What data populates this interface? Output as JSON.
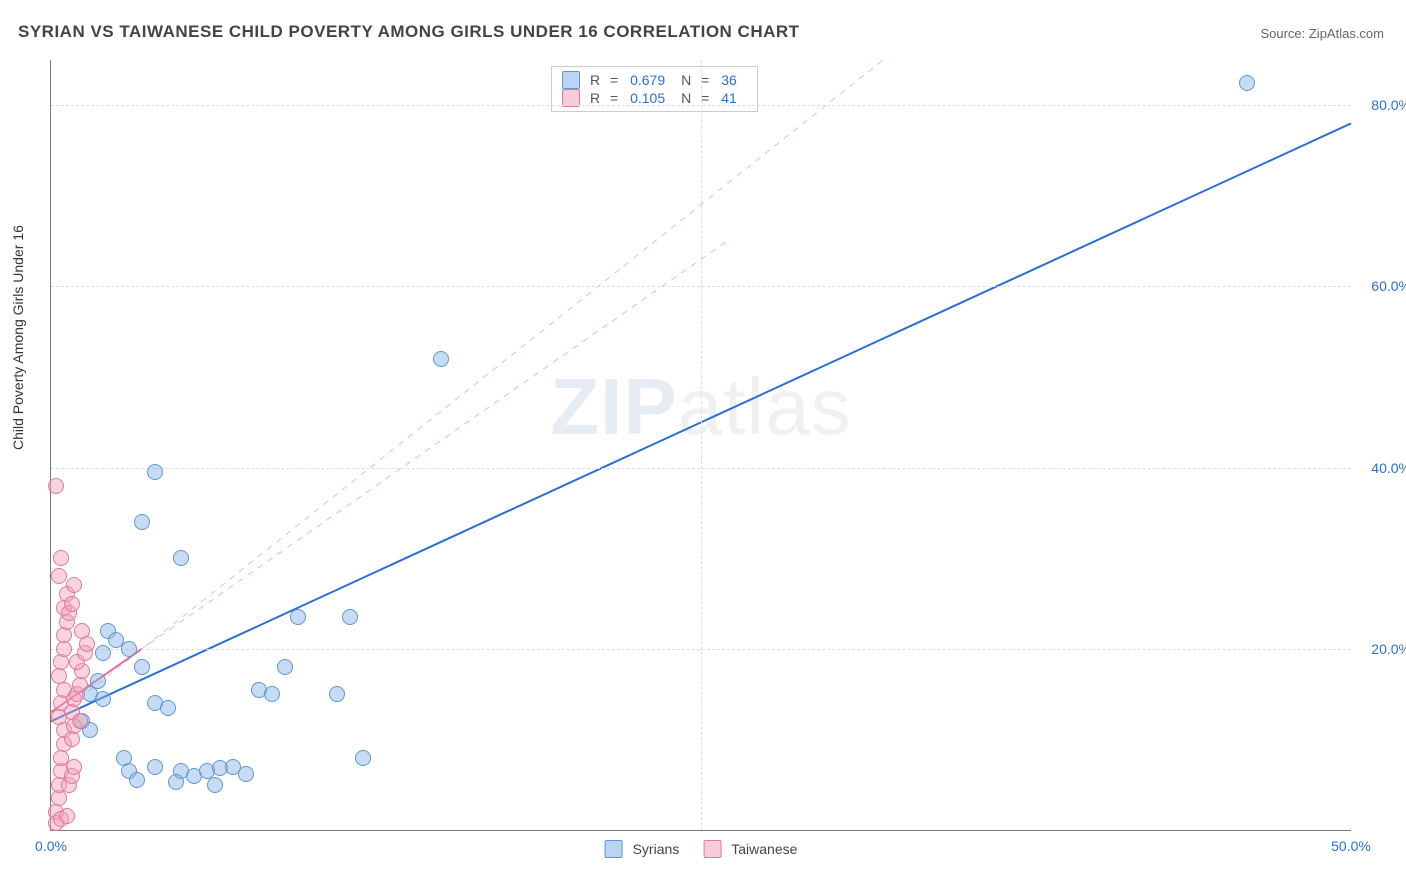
{
  "title": "SYRIAN VS TAIWANESE CHILD POVERTY AMONG GIRLS UNDER 16 CORRELATION CHART",
  "source_prefix": "Source: ",
  "source_name": "ZipAtlas.com",
  "ylabel": "Child Poverty Among Girls Under 16",
  "watermark_zip": "ZIP",
  "watermark_atlas": "atlas",
  "chart": {
    "type": "scatter-correlation",
    "background_color": "#ffffff",
    "grid_color": "#dddddd",
    "axis_color": "#777777",
    "value_text_color": "#2b6fd6",
    "label_text_color": "#333333",
    "xlim": [
      0,
      50
    ],
    "ylim": [
      0,
      85
    ],
    "xticks": [
      {
        "v": 0,
        "label": "0.0%"
      },
      {
        "v": 50,
        "label": "50.0%"
      }
    ],
    "yticks": [
      {
        "v": 20,
        "label": "20.0%"
      },
      {
        "v": 40,
        "label": "40.0%"
      },
      {
        "v": 60,
        "label": "60.0%"
      },
      {
        "v": 80,
        "label": "80.0%"
      }
    ],
    "grid_y": [
      20,
      40,
      60,
      80
    ],
    "grid_x": [
      25
    ],
    "marker_size": 14,
    "series": [
      {
        "name": "Syrians",
        "label": "Syrians",
        "color_fill": "rgba(130,177,230,0.45)",
        "color_stroke": "#5e97d1",
        "R_label": "R",
        "R": "0.679",
        "N_label": "N",
        "N": "36",
        "trend": {
          "style": "solid",
          "color": "#2b6fd6",
          "width": 2,
          "x1": 0,
          "y1": 12,
          "x2": 50,
          "y2": 78
        },
        "dashed_ref": {
          "style": "dashed",
          "color": "rgba(130,177,230,0.6)",
          "width": 1,
          "x1": 0,
          "y1": 12,
          "x2": 32,
          "y2": 85
        },
        "points": [
          [
            2.0,
            19.5
          ],
          [
            2.2,
            22.0
          ],
          [
            2.5,
            21.0
          ],
          [
            3.0,
            20.0
          ],
          [
            3.5,
            18.0
          ],
          [
            4.0,
            14.0
          ],
          [
            4.5,
            13.5
          ],
          [
            3.0,
            6.5
          ],
          [
            4.0,
            7.0
          ],
          [
            5.0,
            6.5
          ],
          [
            5.5,
            6.0
          ],
          [
            6.0,
            6.5
          ],
          [
            6.5,
            6.8
          ],
          [
            7.0,
            7.0
          ],
          [
            7.5,
            6.2
          ],
          [
            8.0,
            15.5
          ],
          [
            8.5,
            15.0
          ],
          [
            11.0,
            15.0
          ],
          [
            12.0,
            8.0
          ],
          [
            3.5,
            34.0
          ],
          [
            5.0,
            30.0
          ],
          [
            4.0,
            39.5
          ],
          [
            9.5,
            23.5
          ],
          [
            11.5,
            23.5
          ],
          [
            9.0,
            18.0
          ],
          [
            15.0,
            52.0
          ],
          [
            46.0,
            82.5
          ],
          [
            1.5,
            15.0
          ],
          [
            1.8,
            16.5
          ],
          [
            2.0,
            14.5
          ],
          [
            1.2,
            12.0
          ],
          [
            1.5,
            11.0
          ],
          [
            2.8,
            8.0
          ],
          [
            3.3,
            5.5
          ],
          [
            4.8,
            5.3
          ],
          [
            6.3,
            5.0
          ]
        ]
      },
      {
        "name": "Taiwanese",
        "label": "Taiwanese",
        "color_fill": "rgba(242,160,185,0.45)",
        "color_stroke": "#e07a9b",
        "R_label": "R",
        "R": "0.105",
        "N_label": "N",
        "N": "41",
        "trend": {
          "style": "solid",
          "color": "#e86b95",
          "width": 2,
          "x1": 0,
          "y1": 13,
          "x2": 3.5,
          "y2": 20
        },
        "dashed_ref": {
          "style": "dashed",
          "color": "rgba(232,107,149,0.5)",
          "width": 1,
          "x1": 0,
          "y1": 13,
          "x2": 26,
          "y2": 65
        },
        "points": [
          [
            0.2,
            2.0
          ],
          [
            0.3,
            3.5
          ],
          [
            0.3,
            5.0
          ],
          [
            0.4,
            6.5
          ],
          [
            0.4,
            8.0
          ],
          [
            0.5,
            9.5
          ],
          [
            0.5,
            11.0
          ],
          [
            0.3,
            12.5
          ],
          [
            0.4,
            14.0
          ],
          [
            0.5,
            15.5
          ],
          [
            0.3,
            17.0
          ],
          [
            0.4,
            18.5
          ],
          [
            0.5,
            20.0
          ],
          [
            0.5,
            21.5
          ],
          [
            0.6,
            23.0
          ],
          [
            0.5,
            24.5
          ],
          [
            0.6,
            26.0
          ],
          [
            0.3,
            28.0
          ],
          [
            0.4,
            30.0
          ],
          [
            0.2,
            38.0
          ],
          [
            0.8,
            13.0
          ],
          [
            0.9,
            14.5
          ],
          [
            1.0,
            15.0
          ],
          [
            1.1,
            16.0
          ],
          [
            1.2,
            17.5
          ],
          [
            1.0,
            18.5
          ],
          [
            0.8,
            10.0
          ],
          [
            0.9,
            11.5
          ],
          [
            1.1,
            12.0
          ],
          [
            0.7,
            5.0
          ],
          [
            0.8,
            6.0
          ],
          [
            0.9,
            7.0
          ],
          [
            0.2,
            0.8
          ],
          [
            0.4,
            1.2
          ],
          [
            0.6,
            1.5
          ],
          [
            1.3,
            19.5
          ],
          [
            1.4,
            20.5
          ],
          [
            1.2,
            22.0
          ],
          [
            0.7,
            24.0
          ],
          [
            0.8,
            25.0
          ],
          [
            0.9,
            27.0
          ]
        ]
      }
    ],
    "bottom_legend": [
      {
        "label": "Syrians",
        "swatch": "syr"
      },
      {
        "label": "Taiwanese",
        "swatch": "tai"
      }
    ]
  }
}
